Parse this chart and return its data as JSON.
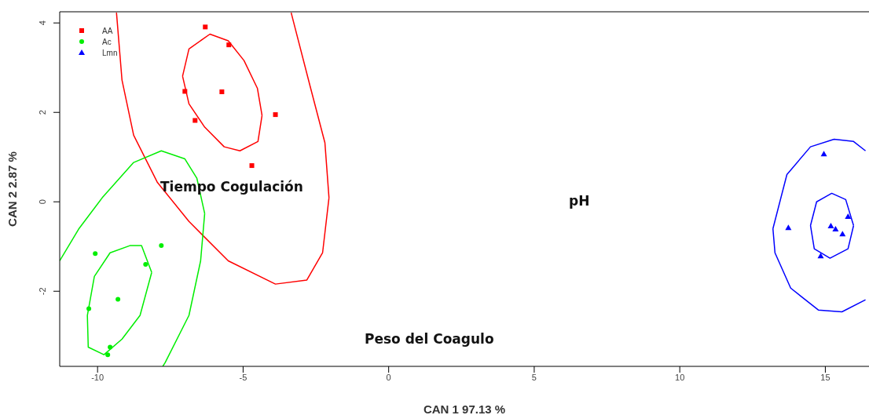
{
  "chart_data": {
    "type": "scatter",
    "xlabel": "CAN 1 97.13 %",
    "ylabel": "CAN 2 2.87 %",
    "xlim": [
      -11.3,
      16.5
    ],
    "ylim": [
      -3.68,
      4.25
    ],
    "xticks": [
      -10,
      -5,
      0,
      5,
      10,
      15
    ],
    "yticks": [
      4,
      2,
      0,
      -2
    ],
    "grid": false,
    "legend": "top left",
    "series": [
      {
        "name": "AA",
        "color": "#ff0000",
        "marker": "square",
        "x": [
          -6.3,
          -5.49,
          -7.0,
          -6.65,
          -3.89,
          -4.7,
          -5.73
        ],
        "values": [
          3.91,
          3.51,
          2.47,
          1.82,
          1.95,
          0.81,
          2.46
        ]
      },
      {
        "name": "Ac",
        "color": "#00ee00",
        "marker": "circle",
        "x": [
          -10.08,
          -7.81,
          -8.35,
          -9.3,
          -10.3,
          -9.57,
          -9.65
        ],
        "values": [
          -1.16,
          -0.98,
          -1.4,
          -2.18,
          -2.39,
          -3.25,
          -3.42
        ]
      },
      {
        "name": "Lmn",
        "color": "#0000ff",
        "marker": "triangle",
        "x": [
          14.95,
          13.73,
          15.78,
          15.19,
          15.35,
          15.59,
          14.84
        ],
        "values": [
          1.07,
          -0.58,
          -0.33,
          -0.54,
          -0.61,
          -0.72,
          -1.21
        ]
      },
      {
        "type": "line",
        "color": "#ff0000",
        "x": [
          -7.08,
          -6.86,
          -6.14,
          -5.51,
          -4.97,
          -4.51,
          -4.35,
          null,
          -7.08,
          -6.86,
          -6.32,
          -5.65,
          -5.11,
          -4.49,
          -4.35
        ],
        "values": [
          2.81,
          3.42,
          3.75,
          3.6,
          3.16,
          2.54,
          1.93,
          null,
          2.81,
          2.19,
          1.67,
          1.23,
          1.14,
          1.35,
          1.93
        ]
      },
      {
        "type": "line",
        "color": "#ff0000",
        "x": [
          -9.35,
          -9.16,
          -8.76,
          -7.95,
          -6.86,
          -5.51,
          -3.89,
          -2.81,
          -2.27,
          -2.05,
          null,
          -3.35,
          -2.68,
          -2.19,
          -2.05
        ],
        "values": [
          4.23,
          2.72,
          1.49,
          0.44,
          -0.44,
          -1.32,
          -1.84,
          -1.75,
          -1.14,
          0.09,
          null,
          4.23,
          2.54,
          1.32,
          0.09
        ]
      },
      {
        "type": "line",
        "color": "#00ee00",
        "x": [
          -10.35,
          -10.11,
          -9.57,
          -8.89,
          -8.49,
          -8.14,
          null,
          -10.35,
          -10.32,
          -9.78,
          -9.16,
          -8.54,
          -8.14
        ],
        "values": [
          -2.54,
          -1.67,
          -1.14,
          -0.98,
          -0.98,
          -1.58,
          null,
          -2.54,
          -3.25,
          -3.42,
          -3.07,
          -2.54,
          -1.58
        ]
      },
      {
        "type": "line",
        "color": "#00ee00",
        "x": [
          -11.3,
          -10.65,
          -9.84,
          -8.76,
          -7.81,
          -7.0,
          -6.59,
          -6.32,
          null,
          -7.76,
          -7.68,
          -6.86,
          -6.46,
          -6.32
        ],
        "values": [
          -1.32,
          -0.61,
          0.09,
          0.88,
          1.14,
          0.96,
          0.53,
          -0.26,
          null,
          -3.68,
          -3.6,
          -2.54,
          -1.32,
          -0.26
        ]
      },
      {
        "type": "line",
        "color": "#0000ff",
        "x": [
          14.49,
          14.7,
          15.22,
          15.7,
          15.97,
          null,
          14.49,
          14.62,
          15.16,
          15.78,
          15.97
        ],
        "values": [
          -0.53,
          0.0,
          0.19,
          0.05,
          -0.53,
          null,
          -0.53,
          -1.05,
          -1.26,
          -1.05,
          -0.53
        ]
      },
      {
        "type": "line",
        "color": "#0000ff",
        "x": [
          13.2,
          13.68,
          14.49,
          15.3,
          15.97,
          16.38,
          null,
          13.2,
          13.27,
          13.81,
          14.76,
          15.57,
          16.38
        ],
        "values": [
          -0.6,
          0.61,
          1.23,
          1.4,
          1.35,
          1.14,
          null,
          -0.6,
          -1.14,
          -1.93,
          -2.42,
          -2.46,
          -2.19
        ]
      }
    ],
    "annotations": [
      "Tiempo Cogulación",
      "pH",
      "Peso del Coagulo"
    ]
  }
}
